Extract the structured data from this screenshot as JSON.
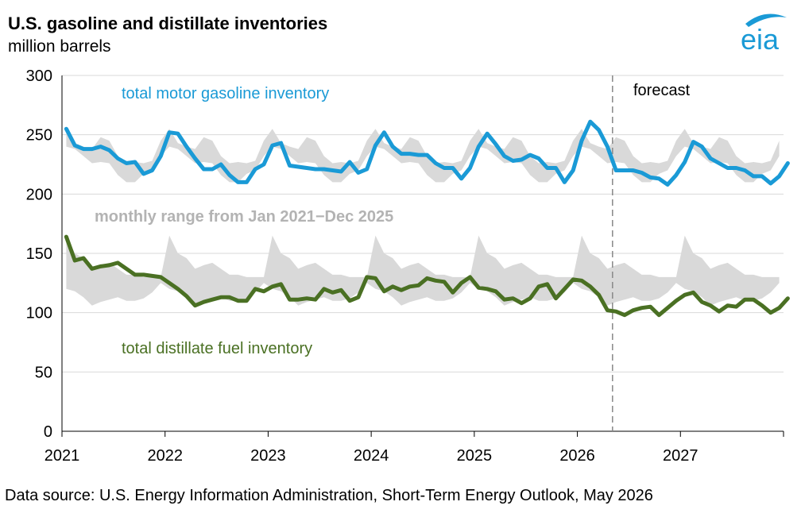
{
  "title": "U.S. gasoline and distillate inventories",
  "subtitle": "million barrels",
  "source": "Data source: U.S. Energy Information Administration, Short-Term Energy Outlook, May 2026",
  "logo_text": "eia",
  "colors": {
    "gasoline": "#1a9ad6",
    "distillate": "#4a7023",
    "range": "#d9d9d9",
    "range_label": "#b3b3b3",
    "logo": "#1a9ad6"
  },
  "chart_data": {
    "type": "line",
    "x_axis": {
      "start": "2021-01",
      "end": "2027-12",
      "tick_labels": [
        "2021",
        "2022",
        "2023",
        "2024",
        "2025",
        "2026",
        "2027"
      ]
    },
    "y_axis": {
      "min": 0,
      "max": 300,
      "ticks": [
        0,
        50,
        100,
        150,
        200,
        250,
        300
      ]
    },
    "grid": "horizontal",
    "annotations": {
      "forecast": "forecast",
      "forecast_start": "2026-05",
      "range_label": "monthly range from Jan 2021−Dec 2025"
    },
    "series": [
      {
        "name": "total motor gasoline inventory",
        "values": [
          255,
          241,
          238,
          238,
          240,
          237,
          230,
          226,
          227,
          217,
          220,
          232,
          252,
          251,
          240,
          230,
          221,
          221,
          225,
          216,
          210,
          210,
          221,
          225,
          241,
          243,
          224,
          223,
          222,
          221,
          221,
          220,
          219,
          227,
          218,
          221,
          241,
          252,
          240,
          234,
          234,
          233,
          233,
          226,
          222,
          222,
          213,
          222,
          240,
          251,
          242,
          232,
          228,
          229,
          233,
          230,
          222,
          222,
          210,
          220,
          245,
          261,
          254,
          240,
          220,
          220,
          220,
          218,
          214,
          213,
          208,
          216,
          227,
          244,
          240,
          230,
          226,
          222,
          222,
          220,
          215,
          215,
          209,
          215,
          226
        ]
      },
      {
        "name": "total distillate fuel inventory",
        "values": [
          164,
          144,
          146,
          137,
          139,
          140,
          142,
          137,
          132,
          132,
          131,
          130,
          125,
          120,
          114,
          106,
          109,
          111,
          113,
          113,
          110,
          110,
          120,
          118,
          122,
          124,
          111,
          111,
          112,
          111,
          120,
          117,
          119,
          110,
          113,
          130,
          129,
          118,
          122,
          119,
          122,
          123,
          129,
          127,
          126,
          117,
          125,
          130,
          121,
          120,
          118,
          111,
          112,
          108,
          112,
          122,
          124,
          112,
          120,
          128,
          127,
          122,
          115,
          102,
          101,
          98,
          102,
          104,
          105,
          98,
          104,
          110,
          115,
          117,
          109,
          106,
          101,
          106,
          105,
          111,
          111,
          106,
          100,
          104,
          112
        ]
      },
      {
        "name": "monthly range from Jan 2021−Dec 2025 (gasoline)",
        "low": [
          240,
          238,
          232,
          226,
          227,
          226,
          216,
          210,
          210,
          217,
          220,
          232
        ],
        "high": [
          255,
          243,
          240,
          238,
          248,
          245,
          232,
          226,
          227,
          226,
          228,
          245
        ]
      },
      {
        "name": "monthly range from Jan 2021−Dec 2025 (distillate)",
        "low": [
          120,
          118,
          113,
          106,
          109,
          111,
          113,
          110,
          110,
          112,
          117,
          125
        ],
        "high": [
          165,
          150,
          146,
          137,
          140,
          142,
          137,
          132,
          132,
          130,
          130,
          130
        ]
      }
    ]
  }
}
